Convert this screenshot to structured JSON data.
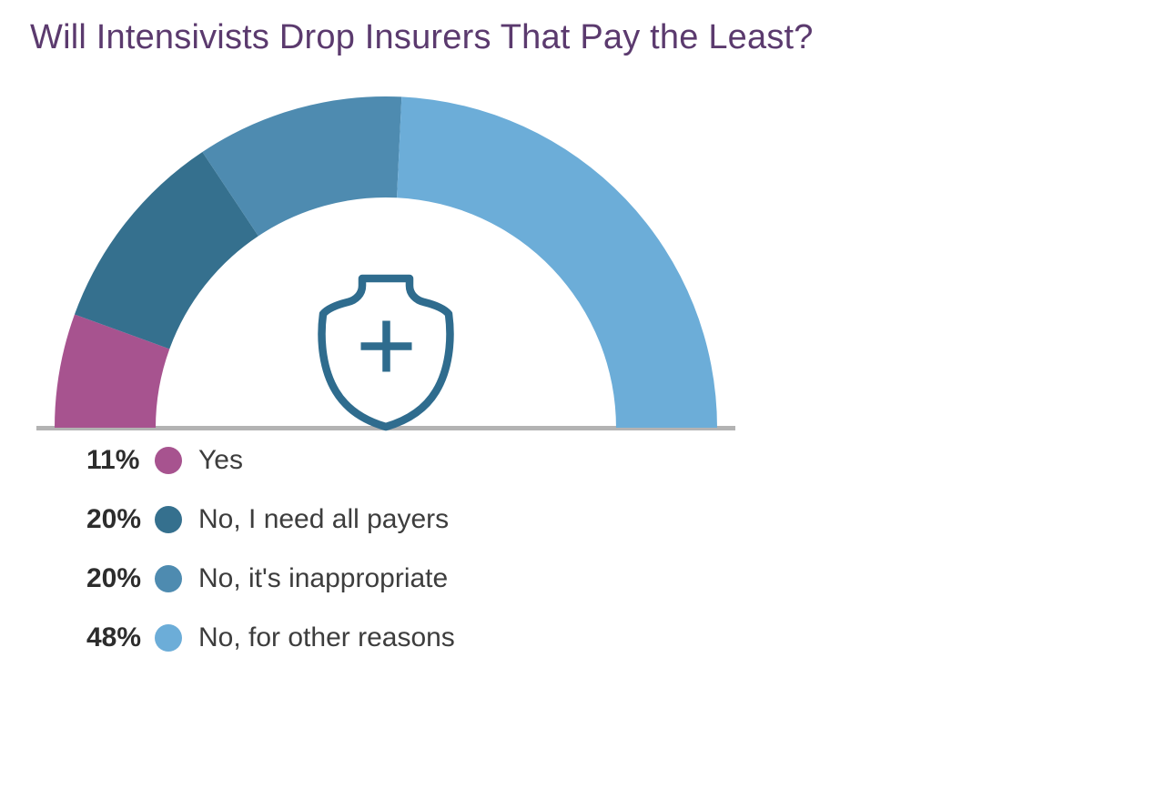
{
  "page": {
    "background": "#ffffff"
  },
  "title": "Will Intensivists Drop Insurers That Pay the Least?",
  "title_color": "#5B3A6E",
  "chart_data": {
    "type": "donut",
    "variant": "semicircle-gauge",
    "title": "Will Intensivists Drop Insurers That Pay the Least?",
    "unit": "%",
    "categories": [
      "Yes",
      "No, I need all payers",
      "No, it's inappropriate",
      "No, for other reasons"
    ],
    "values": [
      11,
      20,
      20,
      48
    ],
    "colors": [
      "#A7538F",
      "#35708E",
      "#4E8BB0",
      "#6CADD8"
    ],
    "start_angle_deg": 180,
    "end_angle_deg": 0,
    "inner_radius_ratio": 0.695,
    "grid": false,
    "legend_position": "bottom-left",
    "center_icon": "shield-plus-icon",
    "center_icon_color": "#2F6C8E",
    "baseline_color": "#B3B3B3"
  },
  "legend": {
    "items": [
      {
        "value": "11%",
        "label": "Yes",
        "color": "#A7538F"
      },
      {
        "value": "20%",
        "label": "No, I need all payers",
        "color": "#35708E"
      },
      {
        "value": "20%",
        "label": "No, it's inappropriate",
        "color": "#4E8BB0"
      },
      {
        "value": "48%",
        "label": "No, for other reasons",
        "color": "#6CADD8"
      }
    ]
  }
}
